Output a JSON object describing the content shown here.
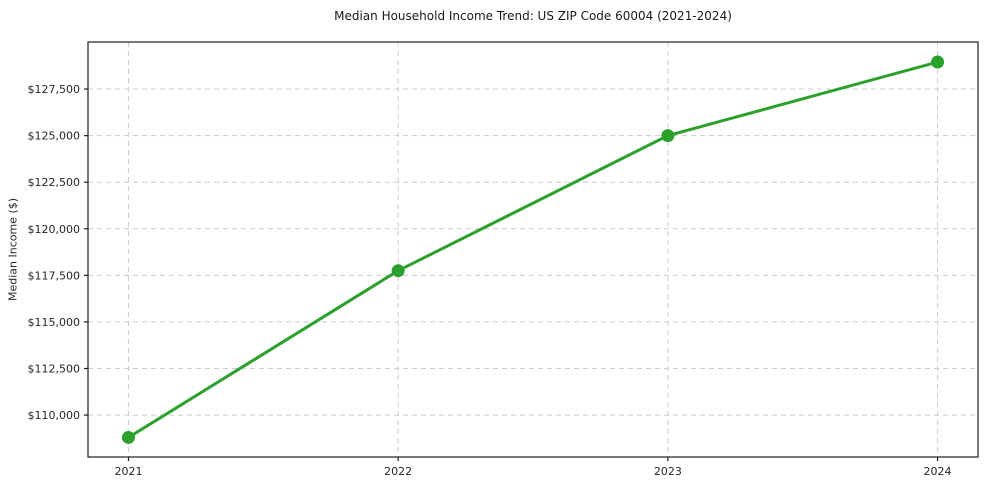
{
  "chart_data": {
    "type": "line",
    "title": "Median Household Income Trend: US ZIP Code 60004 (2021-2024)",
    "xlabel": "",
    "ylabel": "Median Income ($)",
    "x": [
      2021,
      2022,
      2023,
      2024
    ],
    "x_tick_labels": [
      "2021",
      "2022",
      "2023",
      "2024"
    ],
    "series": [
      {
        "name": "Median Household Income",
        "values": [
          108800,
          117750,
          125000,
          128950
        ]
      }
    ],
    "yticks": [
      110000,
      112500,
      115000,
      117500,
      120000,
      122500,
      125000,
      127500
    ],
    "y_tick_labels": [
      "$110,000",
      "$112,500",
      "$115,000",
      "$117,500",
      "$120,000",
      "$122,500",
      "$125,000",
      "$127,500"
    ],
    "xlim": [
      2020.85,
      2024.15
    ],
    "ylim": [
      107750,
      130025
    ],
    "grid": true,
    "grid_style": "dashed",
    "legend": "none",
    "line_color": "#2ca02c",
    "marker": "circle",
    "grid_color": "#cccccc",
    "spine_color": "#1f1f1f",
    "background": "#ffffff"
  }
}
